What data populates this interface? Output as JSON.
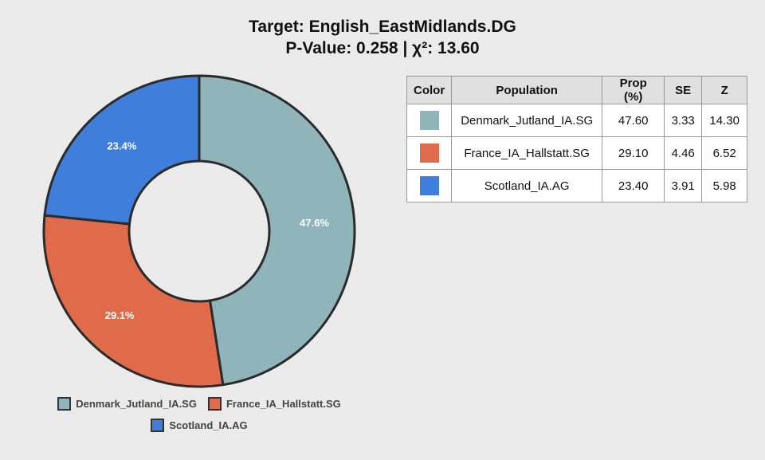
{
  "title": {
    "line1": "Target: English_EastMidlands.DG",
    "line2": "P-Value: 0.258 | χ²: 13.60"
  },
  "chart_data": {
    "type": "pie",
    "title": "Target: English_EastMidlands.DG",
    "subtitle": "P-Value: 0.258 | χ²: 13.60",
    "slices": [
      {
        "label": "Denmark_Jutland_IA.SG",
        "value": 47.6,
        "display": "47.6%",
        "color": "#8fb5ba"
      },
      {
        "label": "France_IA_Hallstatt.SG",
        "value": 29.1,
        "display": "29.1%",
        "color": "#e06b4b"
      },
      {
        "label": "Scotland_IA.AG",
        "value": 23.4,
        "display": "23.4%",
        "color": "#3f7edb"
      }
    ],
    "donut": true,
    "legend_placement": "bottom"
  },
  "table": {
    "headers": {
      "color": "Color",
      "population": "Population",
      "prop": "Prop (%)",
      "se": "SE",
      "z": "Z"
    },
    "rows": [
      {
        "color": "#8fb5ba",
        "population": "Denmark_Jutland_IA.SG",
        "prop": "47.60",
        "se": "3.33",
        "z": "14.30"
      },
      {
        "color": "#e06b4b",
        "population": "France_IA_Hallstatt.SG",
        "prop": "29.10",
        "se": "4.46",
        "z": "6.52"
      },
      {
        "color": "#3f7edb",
        "population": "Scotland_IA.AG",
        "prop": "23.40",
        "se": "3.91",
        "z": "5.98"
      }
    ]
  },
  "legend": {
    "items": [
      {
        "label": "Denmark_Jutland_IA.SG",
        "color": "#8fb5ba"
      },
      {
        "label": "France_IA_Hallstatt.SG",
        "color": "#e06b4b"
      },
      {
        "label": "Scotland_IA.AG",
        "color": "#3f7edb"
      }
    ]
  }
}
